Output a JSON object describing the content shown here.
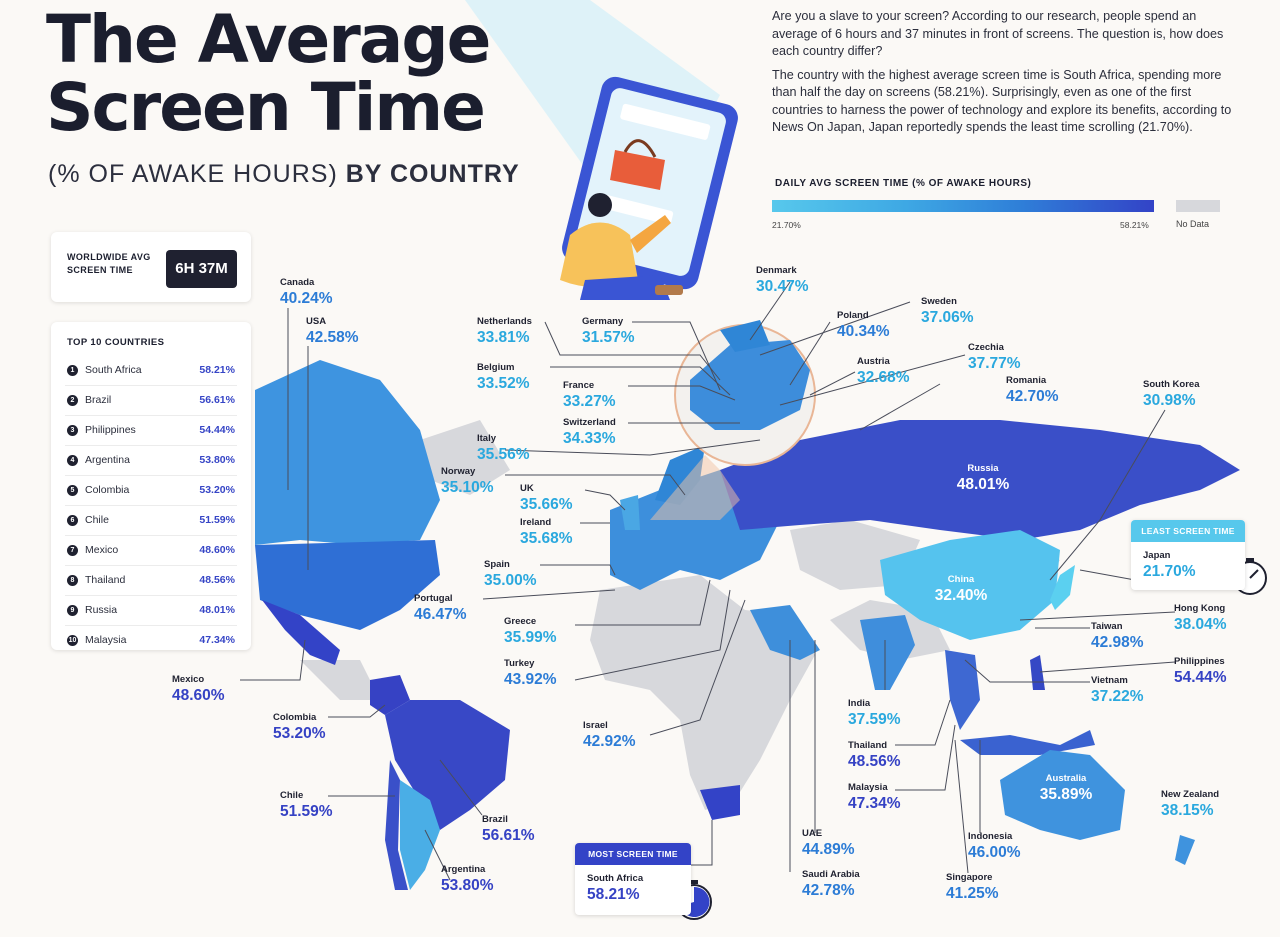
{
  "header": {
    "title_line1": "The Average",
    "title_line2": "Screen Time",
    "subtitle_prefix": "(% OF AWAKE HOURS)",
    "subtitle_bold": "BY COUNTRY"
  },
  "intro": {
    "p1": "Are you a slave to your screen? According to our research, people spend an average of 6 hours and 37 minutes in front of screens. The question is, how does each country differ?",
    "p2": "The country with the highest average screen time is South Africa, spending more than half the day on screens (58.21%). Surprisingly, even as one of the first countries to harness the power of technology and explore its benefits, according to News On Japan, Japan reportedly spends the least time scrolling (21.70%)."
  },
  "legend": {
    "title": "DAILY AVG SCREEN TIME (% OF AWAKE HOURS)",
    "min": "21.70%",
    "max": "58.21%",
    "no_data": "No Data",
    "colors": {
      "low": "#57c8ec",
      "mid": "#2f7fd8",
      "high": "#3343c7",
      "no_data": "#d7d8dc"
    }
  },
  "worldwide": {
    "label": "WORLDWIDE AVG SCREEN TIME",
    "value": "6H 37M"
  },
  "top10": {
    "title": "TOP 10 COUNTRIES",
    "items": [
      {
        "rank": "1",
        "country": "South Africa",
        "value": "58.21%"
      },
      {
        "rank": "2",
        "country": "Brazil",
        "value": "56.61%"
      },
      {
        "rank": "3",
        "country": "Philippines",
        "value": "54.44%"
      },
      {
        "rank": "4",
        "country": "Argentina",
        "value": "53.80%"
      },
      {
        "rank": "5",
        "country": "Colombia",
        "value": "53.20%"
      },
      {
        "rank": "6",
        "country": "Chile",
        "value": "51.59%"
      },
      {
        "rank": "7",
        "country": "Mexico",
        "value": "48.60%"
      },
      {
        "rank": "8",
        "country": "Thailand",
        "value": "48.56%"
      },
      {
        "rank": "9",
        "country": "Russia",
        "value": "48.01%"
      },
      {
        "rank": "10",
        "country": "Malaysia",
        "value": "47.34%"
      }
    ]
  },
  "badges": {
    "most": {
      "tag": "MOST SCREEN TIME",
      "country": "South Africa",
      "value": "58.21%"
    },
    "least": {
      "tag": "LEAST SCREEN TIME",
      "country": "Japan",
      "value": "21.70%"
    }
  },
  "countries": {
    "canada": {
      "name": "Canada",
      "value": "40.24%"
    },
    "usa": {
      "name": "USA",
      "value": "42.58%"
    },
    "mexico": {
      "name": "Mexico",
      "value": "48.60%"
    },
    "colombia": {
      "name": "Colombia",
      "value": "53.20%"
    },
    "chile": {
      "name": "Chile",
      "value": "51.59%"
    },
    "brazil": {
      "name": "Brazil",
      "value": "56.61%"
    },
    "argentina": {
      "name": "Argentina",
      "value": "53.80%"
    },
    "netherlands": {
      "name": "Netherlands",
      "value": "33.81%"
    },
    "germany": {
      "name": "Germany",
      "value": "31.57%"
    },
    "belgium": {
      "name": "Belgium",
      "value": "33.52%"
    },
    "france": {
      "name": "France",
      "value": "33.27%"
    },
    "switzerland": {
      "name": "Switzerland",
      "value": "34.33%"
    },
    "italy": {
      "name": "Italy",
      "value": "35.56%"
    },
    "norway": {
      "name": "Norway",
      "value": "35.10%"
    },
    "uk": {
      "name": "UK",
      "value": "35.66%"
    },
    "ireland": {
      "name": "Ireland",
      "value": "35.68%"
    },
    "spain": {
      "name": "Spain",
      "value": "35.00%"
    },
    "portugal": {
      "name": "Portugal",
      "value": "46.47%"
    },
    "greece": {
      "name": "Greece",
      "value": "35.99%"
    },
    "turkey": {
      "name": "Turkey",
      "value": "43.92%"
    },
    "israel": {
      "name": "Israel",
      "value": "42.92%"
    },
    "denmark": {
      "name": "Denmark",
      "value": "30.47%"
    },
    "poland": {
      "name": "Poland",
      "value": "40.34%"
    },
    "sweden": {
      "name": "Sweden",
      "value": "37.06%"
    },
    "austria": {
      "name": "Austria",
      "value": "32.68%"
    },
    "czechia": {
      "name": "Czechia",
      "value": "37.77%"
    },
    "romania": {
      "name": "Romania",
      "value": "42.70%"
    },
    "south_korea": {
      "name": "South Korea",
      "value": "30.98%"
    },
    "russia": {
      "name": "Russia",
      "value": "48.01%"
    },
    "china": {
      "name": "China",
      "value": "32.40%"
    },
    "hong_kong": {
      "name": "Hong Kong",
      "value": "38.04%"
    },
    "taiwan": {
      "name": "Taiwan",
      "value": "42.98%"
    },
    "philippines": {
      "name": "Philippines",
      "value": "54.44%"
    },
    "vietnam": {
      "name": "Vietnam",
      "value": "37.22%"
    },
    "india": {
      "name": "India",
      "value": "37.59%"
    },
    "thailand": {
      "name": "Thailand",
      "value": "48.56%"
    },
    "malaysia": {
      "name": "Malaysia",
      "value": "47.34%"
    },
    "australia": {
      "name": "Australia",
      "value": "35.89%"
    },
    "new_zealand": {
      "name": "New Zealand",
      "value": "38.15%"
    },
    "indonesia": {
      "name": "Indonesia",
      "value": "46.00%"
    },
    "singapore": {
      "name": "Singapore",
      "value": "41.25%"
    },
    "uae": {
      "name": "UAE",
      "value": "44.89%"
    },
    "saudi_arabia": {
      "name": "Saudi Arabia",
      "value": "42.78%"
    }
  }
}
